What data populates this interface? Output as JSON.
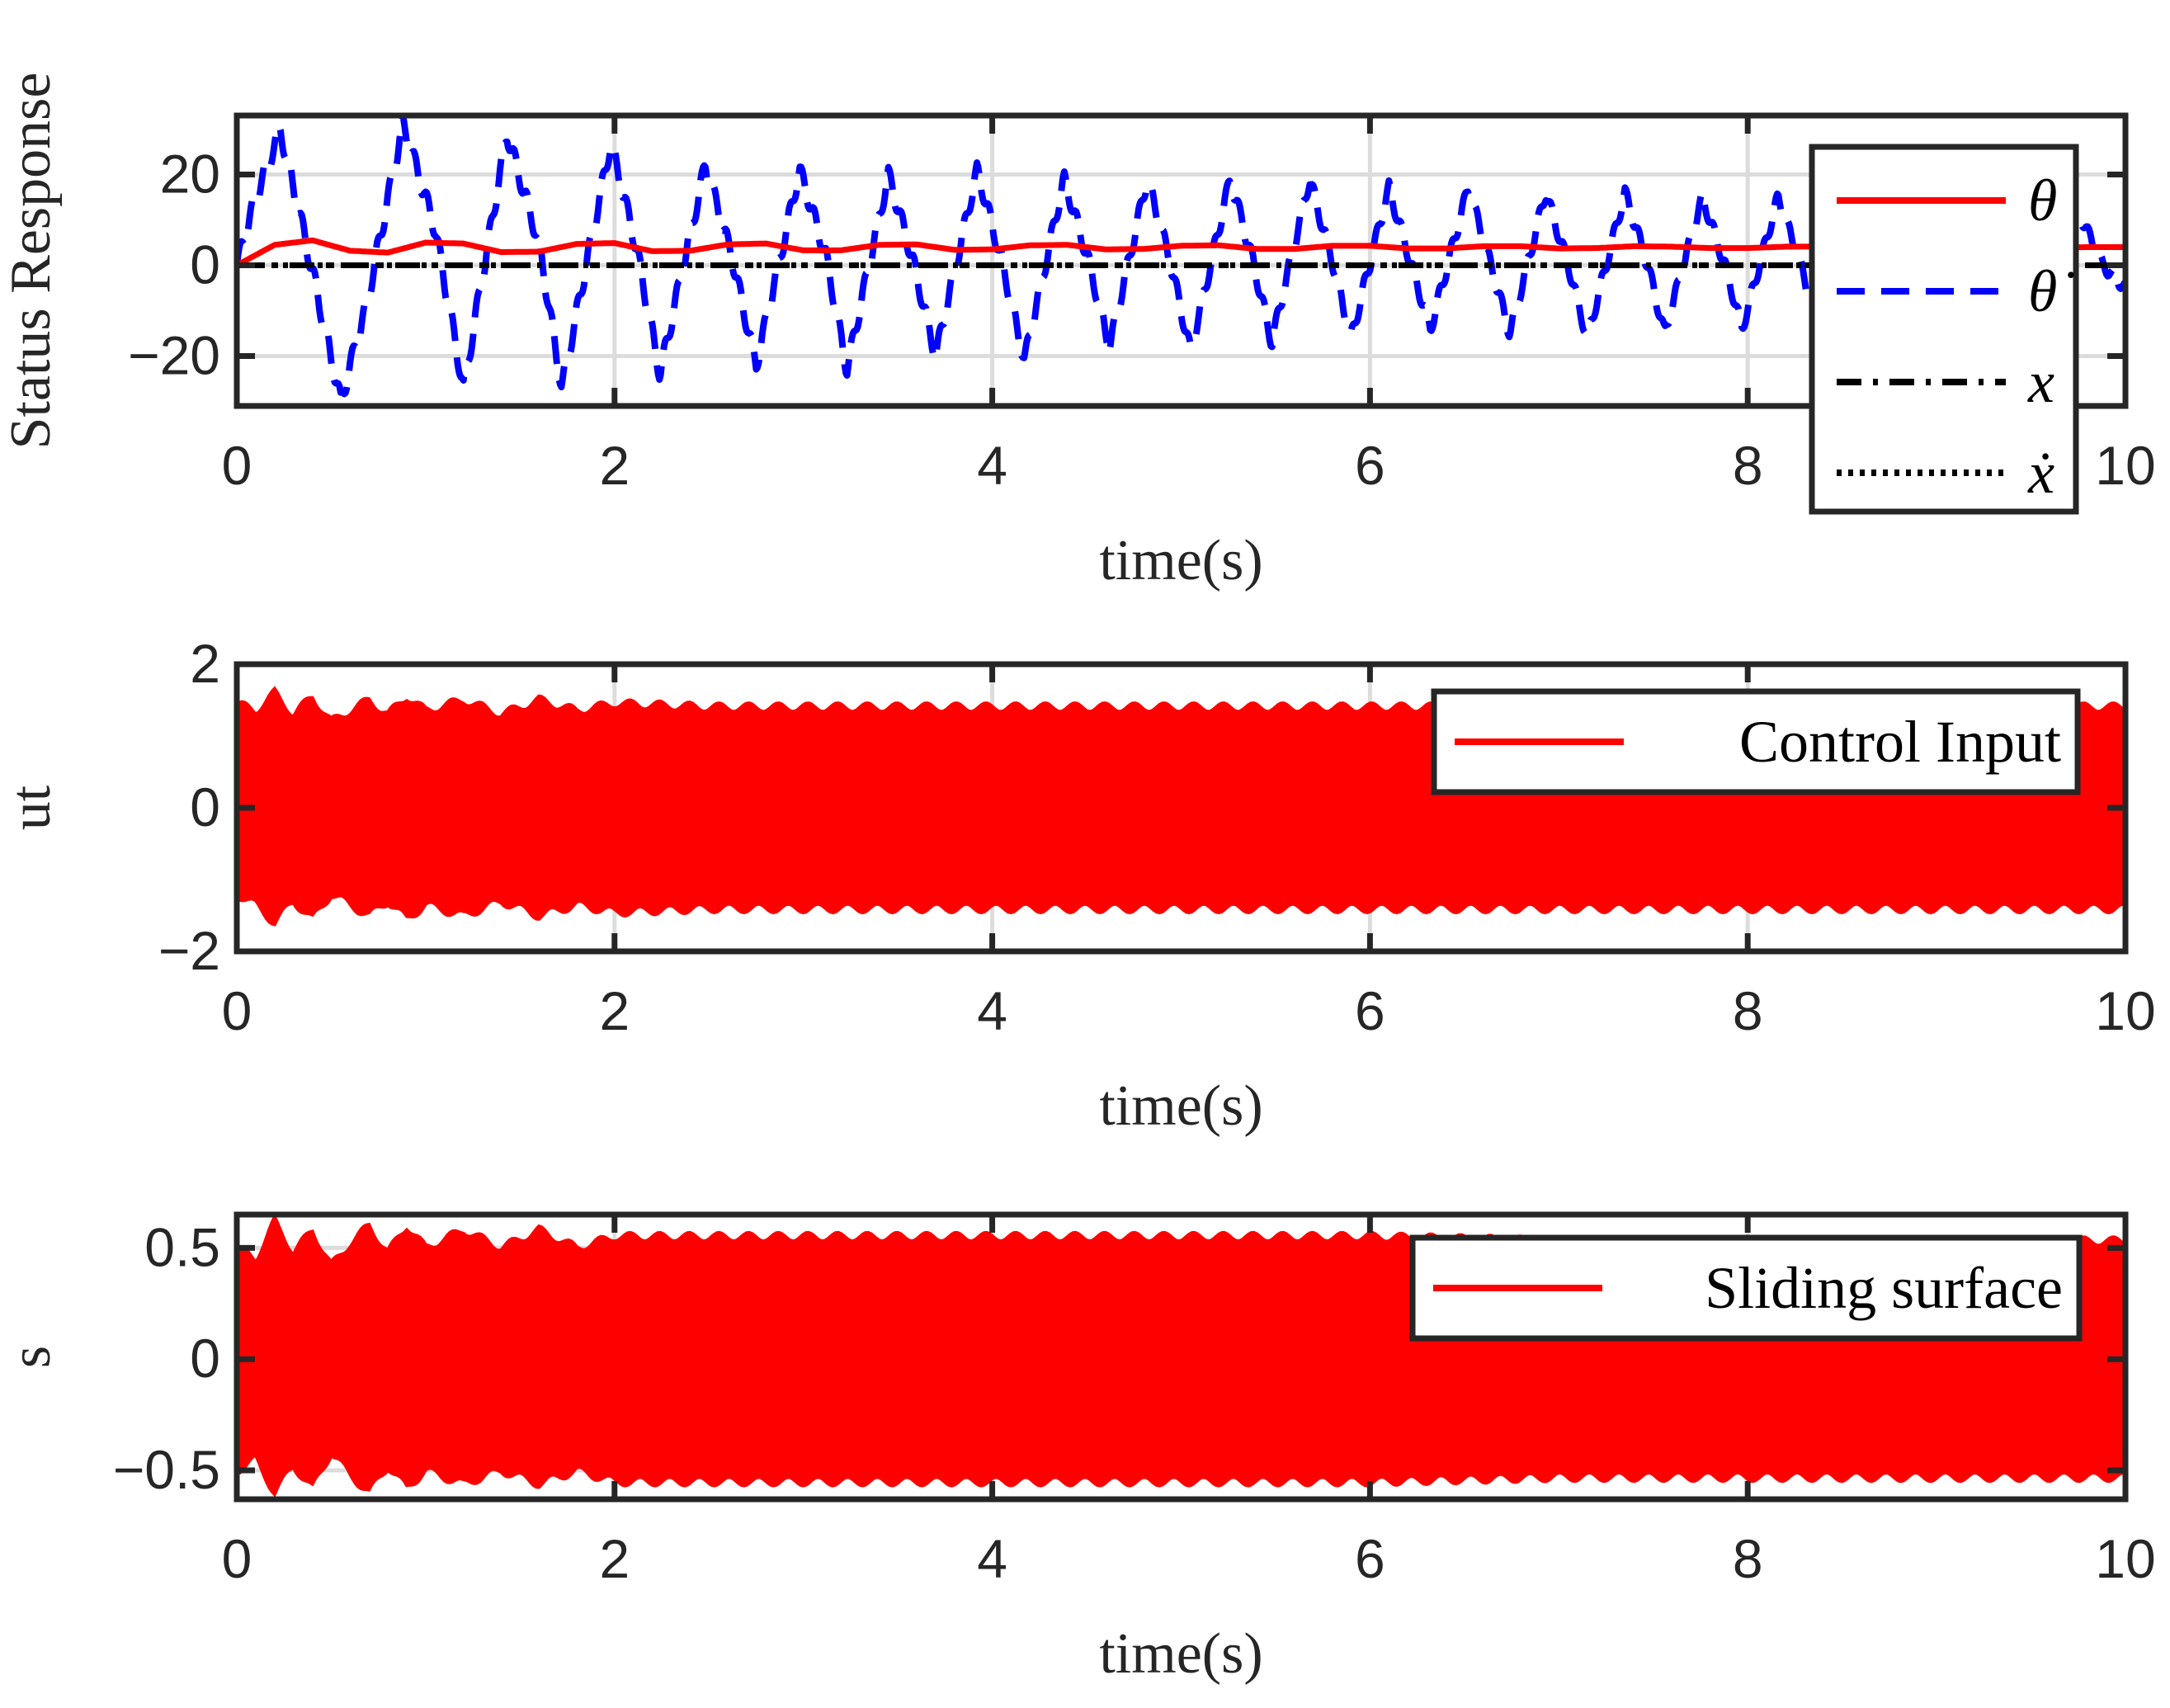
{
  "chart_data": [
    {
      "type": "line",
      "title": "",
      "xlabel": "time(s)",
      "ylabel": "Status Response",
      "xlim": [
        0,
        10
      ],
      "ylim": [
        -31,
        33
      ],
      "xticks": [
        0,
        2,
        4,
        6,
        8,
        10
      ],
      "xtick_labels": [
        "0",
        "2",
        "4",
        "6",
        "8",
        "10"
      ],
      "yticks": [
        20,
        0,
        -20
      ],
      "ytick_labels": [
        "20",
        "0",
        "−20"
      ],
      "grid": true,
      "legend_position": "top-right",
      "series": [
        {
          "name": "θ",
          "color": "#ff0000",
          "style": "solid",
          "x": [
            0,
            0.2,
            0.4,
            0.6,
            0.8,
            1.0,
            1.2,
            1.4,
            1.6,
            1.8,
            2.0,
            2.2,
            2.4,
            2.6,
            2.8,
            3.0,
            3.2,
            3.4,
            3.6,
            3.8,
            4.0,
            4.2,
            4.4,
            4.6,
            4.8,
            5.0,
            5.2,
            5.4,
            5.6,
            5.8,
            6.0,
            6.2,
            6.4,
            6.6,
            6.8,
            7.0,
            7.2,
            7.4,
            7.6,
            7.8,
            8.0,
            8.2,
            8.4,
            8.6,
            8.8,
            9.0,
            9.2,
            9.4,
            9.6,
            9.8,
            10.0
          ],
          "y": [
            0,
            4.5,
            5.5,
            3.2,
            2.8,
            5.0,
            4.8,
            2.9,
            3.0,
            4.7,
            4.9,
            3.1,
            3.2,
            4.6,
            4.8,
            3.3,
            3.3,
            4.5,
            4.6,
            3.4,
            3.5,
            4.4,
            4.5,
            3.5,
            3.6,
            4.3,
            4.4,
            3.6,
            3.6,
            4.3,
            4.3,
            3.7,
            3.7,
            4.2,
            4.2,
            3.7,
            3.8,
            4.2,
            4.1,
            3.8,
            3.8,
            4.1,
            4.1,
            3.9,
            3.9,
            4.1,
            4.0,
            3.9,
            3.9,
            4.0,
            4.0
          ]
        },
        {
          "name": "θ̇",
          "color": "#0000ff",
          "style": "dashed",
          "x": [
            0,
            0.1,
            0.23,
            0.42,
            0.55,
            0.68,
            0.88,
            1.05,
            1.2,
            1.43,
            1.6,
            1.72,
            1.98,
            2.12,
            2.24,
            2.48,
            2.62,
            2.75,
            2.98,
            3.12,
            3.23,
            3.45,
            3.58,
            3.7,
            3.92,
            4.05,
            4.17,
            4.38,
            4.51,
            4.62,
            4.82,
            4.94,
            5.05,
            5.26,
            5.38,
            5.48,
            5.68,
            5.8,
            5.9,
            6.1,
            6.22,
            6.32,
            6.52,
            6.64,
            6.74,
            6.93,
            7.05,
            7.15,
            7.35,
            7.47,
            7.56,
            7.76,
            7.88,
            7.97,
            8.16,
            8.28,
            8.37,
            8.56,
            8.68,
            8.77,
            8.96,
            9.08,
            9.17,
            9.36,
            9.48,
            9.57,
            9.76,
            9.88,
            10.0
          ],
          "y": [
            0,
            15,
            30,
            -5,
            -30,
            -10,
            31,
            8,
            -27,
            29,
            5,
            -27,
            27,
            3,
            -24,
            22,
            2,
            -22,
            21,
            2,
            -23,
            20,
            1,
            -20,
            21,
            1,
            -21,
            19,
            1,
            -18,
            19,
            1,
            -19,
            19,
            1,
            -17,
            19,
            1,
            -16,
            17,
            0,
            -14,
            17,
            0,
            -15,
            16,
            0,
            -16,
            16,
            0,
            -15,
            15,
            0,
            -14,
            15,
            0,
            -14,
            14,
            0,
            -14,
            14,
            0,
            -13,
            13,
            0,
            -12,
            11,
            0,
            -5
          ]
        },
        {
          "name": "x",
          "color": "#000000",
          "style": "dashdot",
          "x": [
            0,
            10
          ],
          "y": [
            0,
            0
          ]
        },
        {
          "name": "ẋ",
          "color": "#000000",
          "style": "dotted",
          "x": [
            0,
            10
          ],
          "y": [
            0,
            0
          ]
        }
      ]
    },
    {
      "type": "area",
      "title": "",
      "xlabel": "time(s)",
      "ylabel": "ut",
      "xlim": [
        0,
        10
      ],
      "ylim": [
        -2,
        2
      ],
      "xticks": [
        0,
        2,
        4,
        6,
        8,
        10
      ],
      "xtick_labels": [
        "0",
        "2",
        "4",
        "6",
        "8",
        "10"
      ],
      "yticks": [
        2,
        0,
        -2
      ],
      "ytick_labels": [
        "2",
        "0",
        "−2"
      ],
      "grid": true,
      "legend_position": "top-right",
      "series": [
        {
          "name": "Control Input",
          "color": "#ff0000",
          "x": [
            0,
            0.1,
            0.2,
            0.3,
            0.4,
            0.5,
            0.6,
            0.7,
            0.8,
            0.9,
            1.0,
            1.2,
            1.4,
            1.6,
            1.8,
            2.0,
            2.5,
            3.0,
            3.5,
            4.0,
            5.0,
            6.0,
            7.0,
            8.0,
            9.0,
            10.0
          ],
          "upper": [
            1.45,
            1.35,
            1.6,
            1.3,
            1.55,
            1.2,
            1.35,
            1.5,
            1.3,
            1.55,
            1.35,
            1.5,
            1.3,
            1.5,
            1.35,
            1.45,
            1.4,
            1.4,
            1.4,
            1.4,
            1.4,
            1.4,
            1.4,
            1.4,
            1.4,
            1.4
          ],
          "lower": [
            -1.2,
            -1.35,
            -1.6,
            -1.3,
            -1.55,
            -1.2,
            -1.35,
            -1.5,
            -1.3,
            -1.55,
            -1.35,
            -1.5,
            -1.3,
            -1.5,
            -1.35,
            -1.45,
            -1.4,
            -1.4,
            -1.4,
            -1.4,
            -1.4,
            -1.4,
            -1.4,
            -1.4,
            -1.4,
            -1.4
          ]
        }
      ]
    },
    {
      "type": "area",
      "title": "",
      "xlabel": "time(s)",
      "ylabel": "s",
      "xlim": [
        0,
        10
      ],
      "ylim": [
        -0.63,
        0.65
      ],
      "xticks": [
        0,
        2,
        4,
        6,
        8,
        10
      ],
      "xtick_labels": [
        "0",
        "2",
        "4",
        "6",
        "8",
        "10"
      ],
      "yticks": [
        0.5,
        0,
        -0.5
      ],
      "ytick_labels": [
        "0.5",
        "0",
        "−0.5"
      ],
      "grid": true,
      "legend_position": "top-right",
      "series": [
        {
          "name": "Sliding surface",
          "color": "#ff0000",
          "x": [
            0,
            0.1,
            0.2,
            0.3,
            0.4,
            0.5,
            0.6,
            0.7,
            0.8,
            0.9,
            1.0,
            1.2,
            1.4,
            1.6,
            1.8,
            2.0,
            2.5,
            3.0,
            3.5,
            4.0,
            5.0,
            6.0,
            7.0,
            8.0,
            9.0,
            10.0
          ],
          "upper": [
            0.5,
            0.45,
            0.62,
            0.48,
            0.58,
            0.42,
            0.52,
            0.6,
            0.48,
            0.6,
            0.5,
            0.58,
            0.5,
            0.58,
            0.5,
            0.55,
            0.55,
            0.55,
            0.55,
            0.55,
            0.55,
            0.55,
            0.53,
            0.53,
            0.53,
            0.53
          ],
          "lower": [
            -0.5,
            -0.45,
            -0.6,
            -0.48,
            -0.58,
            -0.42,
            -0.52,
            -0.6,
            -0.48,
            -0.58,
            -0.5,
            -0.56,
            -0.5,
            -0.56,
            -0.5,
            -0.55,
            -0.55,
            -0.55,
            -0.55,
            -0.55,
            -0.55,
            -0.55,
            -0.53,
            -0.53,
            -0.53,
            -0.53
          ]
        }
      ]
    }
  ]
}
